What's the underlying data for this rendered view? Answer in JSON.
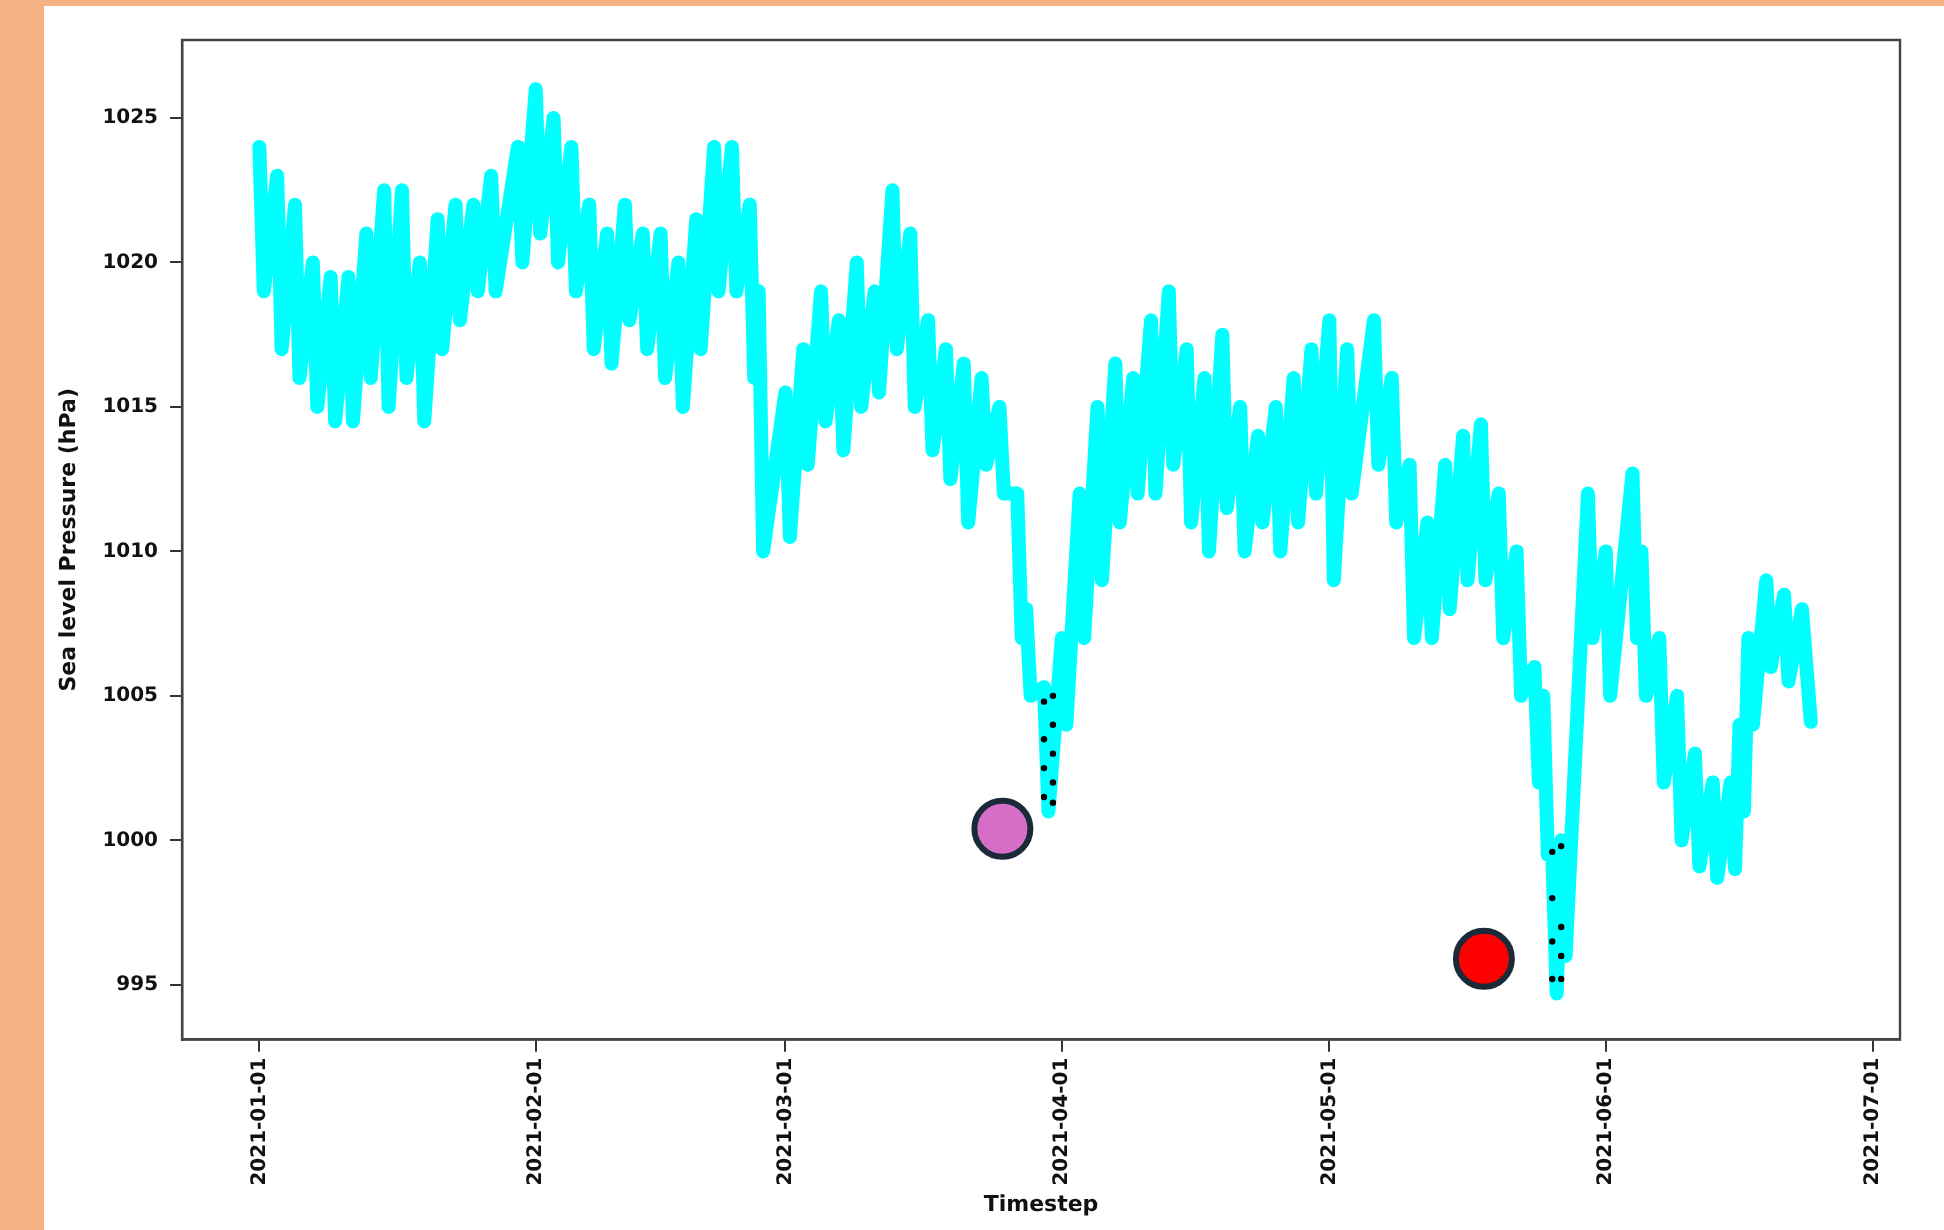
{
  "chart_data": {
    "type": "line",
    "xlabel": "Timestep",
    "ylabel": "Sea level Pressure (hPa)",
    "xlim": [
      "2020-12-23T08:00",
      "2021-07-04"
    ],
    "ylim": [
      993.1,
      1027.7
    ],
    "xticks": [
      "2021-01-01",
      "2021-02-01",
      "2021-03-01",
      "2021-04-01",
      "2021-05-01",
      "2021-06-01",
      "2021-07-01"
    ],
    "yticks": [
      995,
      1000,
      1005,
      1010,
      1015,
      1020,
      1025
    ],
    "grid": false,
    "legend": false,
    "series": [
      {
        "color": "#00ffff",
        "marker": "none",
        "line_style": "solid",
        "x": [
          "2021-01-01",
          "2021-01-01T12:00",
          "2021-01-03",
          "2021-01-03T12:00",
          "2021-01-05",
          "2021-01-05T12:00",
          "2021-01-07",
          "2021-01-07T12:00",
          "2021-01-09",
          "2021-01-09T12:00",
          "2021-01-11",
          "2021-01-11T12:00",
          "2021-01-13",
          "2021-01-13T12:00",
          "2021-01-15",
          "2021-01-15T12:00",
          "2021-01-17",
          "2021-01-17T12:00",
          "2021-01-19",
          "2021-01-19T12:00",
          "2021-01-21",
          "2021-01-21T12:00",
          "2021-01-23",
          "2021-01-23T12:00",
          "2021-01-25",
          "2021-01-25T12:00",
          "2021-01-27",
          "2021-01-27T12:00",
          "2021-01-30",
          "2021-01-30T12:00",
          "2021-02-01",
          "2021-02-01T12:00",
          "2021-02-03",
          "2021-02-03T12:00",
          "2021-02-05",
          "2021-02-05T12:00",
          "2021-02-07",
          "2021-02-07T12:00",
          "2021-02-09",
          "2021-02-09T12:00",
          "2021-02-11",
          "2021-02-11T12:00",
          "2021-02-13",
          "2021-02-13T12:00",
          "2021-02-15",
          "2021-02-15T12:00",
          "2021-02-17",
          "2021-02-17T12:00",
          "2021-02-19",
          "2021-02-19T12:00",
          "2021-02-21",
          "2021-02-21T12:00",
          "2021-02-23",
          "2021-02-23T12:00",
          "2021-02-25",
          "2021-02-25T12:00",
          "2021-02-26",
          "2021-02-26T12:00",
          "2021-03-01",
          "2021-03-01T12:00",
          "2021-03-03",
          "2021-03-03T12:00",
          "2021-03-05",
          "2021-03-05T12:00",
          "2021-03-07",
          "2021-03-07T12:00",
          "2021-03-09",
          "2021-03-09T12:00",
          "2021-03-11",
          "2021-03-11T12:00",
          "2021-03-13",
          "2021-03-13T12:00",
          "2021-03-15",
          "2021-03-15T12:00",
          "2021-03-17",
          "2021-03-17T12:00",
          "2021-03-19",
          "2021-03-19T12:00",
          "2021-03-21",
          "2021-03-21T12:00",
          "2021-03-23",
          "2021-03-23T12:00",
          "2021-03-25",
          "2021-03-25T12:00",
          "2021-03-27",
          "2021-03-27T12:00",
          "2021-03-28",
          "2021-03-28T12:00",
          "2021-03-30",
          "2021-03-30T12:00",
          "2021-04-01",
          "2021-04-01T12:00",
          "2021-04-03",
          "2021-04-03T12:00",
          "2021-04-05",
          "2021-04-05T12:00",
          "2021-04-07",
          "2021-04-07T12:00",
          "2021-04-09",
          "2021-04-09T12:00",
          "2021-04-11",
          "2021-04-11T12:00",
          "2021-04-13",
          "2021-04-13T12:00",
          "2021-04-15",
          "2021-04-15T12:00",
          "2021-04-17",
          "2021-04-17T12:00",
          "2021-04-19",
          "2021-04-19T12:00",
          "2021-04-21",
          "2021-04-21T12:00",
          "2021-04-23",
          "2021-04-23T12:00",
          "2021-04-25",
          "2021-04-25T12:00",
          "2021-04-27",
          "2021-04-27T12:00",
          "2021-04-29",
          "2021-04-29T12:00",
          "2021-05-01",
          "2021-05-01T12:00",
          "2021-05-03",
          "2021-05-03T12:00",
          "2021-05-06",
          "2021-05-06T12:00",
          "2021-05-08",
          "2021-05-08T12:00",
          "2021-05-10",
          "2021-05-10T12:00",
          "2021-05-12",
          "2021-05-12T12:00",
          "2021-05-14",
          "2021-05-14T12:00",
          "2021-05-16",
          "2021-05-16T12:00",
          "2021-05-18",
          "2021-05-18T12:00",
          "2021-05-20",
          "2021-05-20T12:00",
          "2021-05-22",
          "2021-05-22T12:00",
          "2021-05-24",
          "2021-05-24T12:00",
          "2021-05-25",
          "2021-05-25T12:00",
          "2021-05-26",
          "2021-05-26T12:00",
          "2021-05-27",
          "2021-05-27T12:00",
          "2021-05-30",
          "2021-05-30T12:00",
          "2021-06-01",
          "2021-06-01T12:00",
          "2021-06-04",
          "2021-06-04T12:00",
          "2021-06-05",
          "2021-06-05T12:00",
          "2021-06-07",
          "2021-06-07T12:00",
          "2021-06-09",
          "2021-06-09T12:00",
          "2021-06-11",
          "2021-06-11T12:00",
          "2021-06-13",
          "2021-06-13T12:00",
          "2021-06-15",
          "2021-06-15T12:00",
          "2021-06-16",
          "2021-06-16T12:00",
          "2021-06-17",
          "2021-06-17T12:00",
          "2021-06-19",
          "2021-06-19T12:00",
          "2021-06-21",
          "2021-06-21T12:00",
          "2021-06-23",
          "2021-06-24"
        ],
        "values": [
          1024,
          1019,
          1023,
          1017,
          1022,
          1016,
          1020,
          1015,
          1019.5,
          1014.5,
          1019.5,
          1014.5,
          1021,
          1016,
          1022.5,
          1015,
          1022.5,
          1016,
          1020,
          1014.5,
          1021.5,
          1017,
          1022,
          1018,
          1022,
          1019,
          1023,
          1019,
          1024,
          1020,
          1026,
          1021,
          1025,
          1020,
          1024,
          1019,
          1022,
          1017,
          1021,
          1016.5,
          1022,
          1018,
          1021,
          1017,
          1021,
          1016,
          1020,
          1015,
          1021.5,
          1017,
          1024,
          1019,
          1024,
          1019,
          1022,
          1016,
          1019,
          1010,
          1015.5,
          1010.5,
          1017,
          1013,
          1019,
          1014.5,
          1018,
          1013.5,
          1020,
          1015,
          1019,
          1015.5,
          1022.5,
          1017,
          1021,
          1015,
          1018,
          1013.5,
          1017,
          1012.5,
          1016.5,
          1011,
          1016,
          1013,
          1015,
          1012,
          1012,
          1007,
          1008,
          1005,
          1005.3,
          1001,
          1007,
          1004,
          1012,
          1007,
          1015,
          1009,
          1016.5,
          1011,
          1016,
          1012,
          1018,
          1012,
          1019,
          1013,
          1017,
          1011,
          1016,
          1010,
          1017.5,
          1011.5,
          1015,
          1010,
          1014,
          1011,
          1015,
          1010,
          1016,
          1011,
          1017,
          1012,
          1018,
          1009,
          1017,
          1012,
          1018,
          1013,
          1016,
          1011,
          1013,
          1007,
          1011,
          1007,
          1013,
          1008,
          1014,
          1009,
          1014.4,
          1009,
          1012,
          1007,
          1010,
          1005,
          1006,
          1002,
          1005,
          999.5,
          999.5,
          994.7,
          1000,
          996,
          1012,
          1007,
          1010,
          1005,
          1012.7,
          1007,
          1010,
          1005,
          1007,
          1002,
          1005,
          1000,
          1003,
          999.1,
          1002,
          998.7,
          1002,
          999,
          1004,
          1001,
          1007,
          1004,
          1009,
          1006,
          1008.5,
          1005.5,
          1008,
          1004.1
        ]
      },
      {
        "type": "scatter",
        "color": "#000000",
        "marker": "circle",
        "x": [
          "2021-03-30",
          "2021-03-30",
          "2021-03-30",
          "2021-03-30",
          "2021-03-31",
          "2021-03-31",
          "2021-03-31",
          "2021-03-31",
          "2021-03-31",
          "2021-05-26",
          "2021-05-26",
          "2021-05-26",
          "2021-05-26",
          "2021-05-27",
          "2021-05-27",
          "2021-05-27",
          "2021-05-27"
        ],
        "values": [
          1004.8,
          1003.5,
          1002.5,
          1001.5,
          1005,
          1004,
          1003,
          1002,
          1001.3,
          999.6,
          998,
          996.5,
          995.2,
          999.8,
          997,
          996,
          995.2
        ]
      },
      {
        "type": "scatter",
        "marker": "circle",
        "colors": [
          "#d66ec8",
          "#ff0000"
        ],
        "x": [
          "2021-03-25T08:00",
          "2021-05-18T08:00"
        ],
        "values": [
          1000.4,
          995.9
        ]
      }
    ]
  }
}
